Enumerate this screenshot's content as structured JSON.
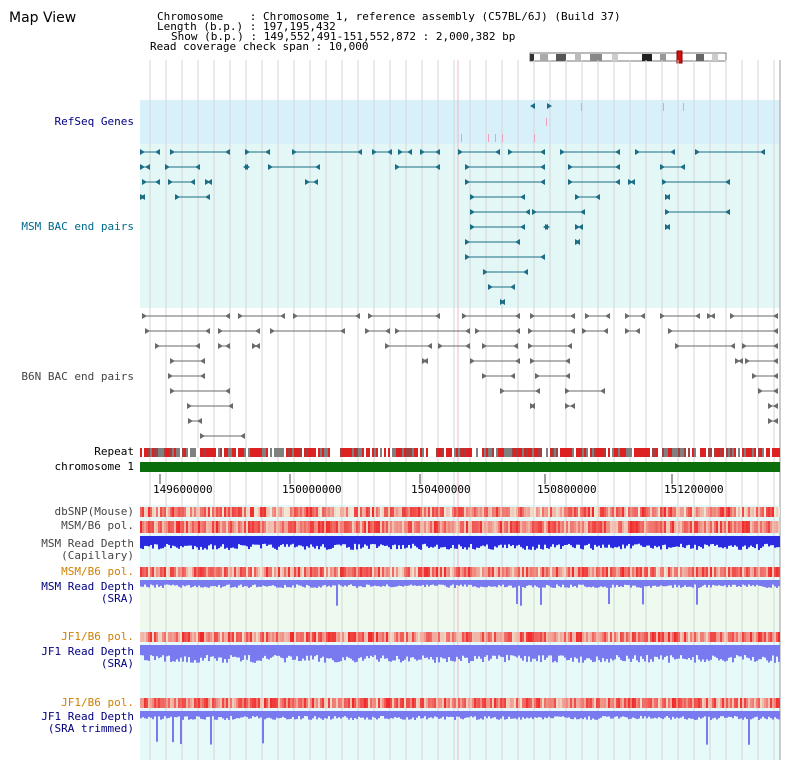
{
  "window": {
    "title": "Map View"
  },
  "info": {
    "chromosome": "Chromosome    : Chromosome 1, reference assembly (C57BL/6J) (Build 37)",
    "length": "Length (b.p.) : 197,195,432",
    "show": "Show (b.p.) : 149,552,491-151,552,872 : 2,000,382 bp",
    "coverage": "Read coverage check span : 10,000"
  },
  "tracks": {
    "refseq": "RefSeq Genes",
    "msm_bac": "MSM BAC end pairs",
    "b6n_bac": "B6N BAC end pairs",
    "repeat": "Repeat",
    "chromosome": "chromosome 1",
    "dbsnp": "dbSNP(Mouse)",
    "msm_b6_pol_1": "MSM/B6 pol.",
    "msm_read_depth_cap_1": "MSM Read Depth",
    "msm_read_depth_cap_2": "(Capillary)",
    "msm_b6_pol_2": "MSM/B6 pol.",
    "msm_read_depth_sra_1": "MSM Read Depth",
    "msm_read_depth_sra_2": "(SRA)",
    "jf1_b6_pol_1": "JF1/B6 pol.",
    "jf1_read_depth_sra_1": "JF1 Read Depth",
    "jf1_read_depth_sra_2": "(SRA)",
    "jf1_b6_pol_2": "JF1/B6 pol.",
    "jf1_read_depth_trim_1": "JF1 Read Depth",
    "jf1_read_depth_trim_2": "(SRA trimmed)"
  },
  "axis": {
    "ticks": [
      "149600000",
      "150000000",
      "150400000",
      "150800000",
      "151200000"
    ]
  },
  "colors": {
    "refseq_bg": "#d8f0fa",
    "msm_bg": "#e4f7f7",
    "track_bg": "#e6fafa",
    "msm_feature": "#1c6d86",
    "b6n_feature": "#6a6a6a",
    "chromosome_green": "#0a6e0a",
    "depth_blue": "#2a2ae0",
    "sra_blue": "#7a7af0",
    "polymorphism_red": "#e83030",
    "label_navy": "#000080",
    "label_orange": "#d08000",
    "label_teal": "#006a8a"
  }
}
